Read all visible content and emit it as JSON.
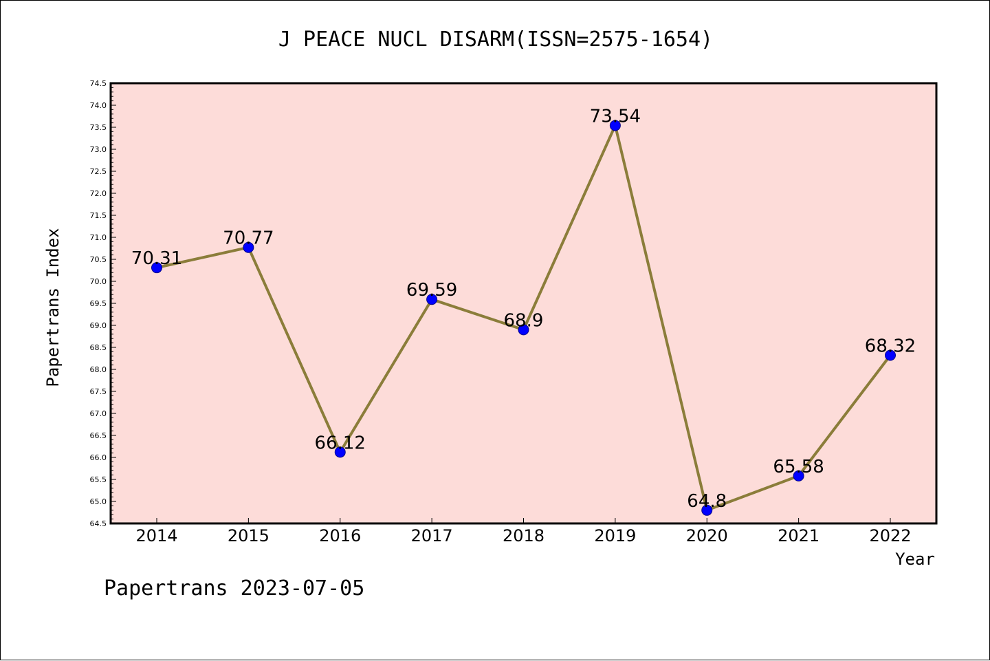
{
  "chart_data": {
    "type": "line",
    "title": "J PEACE NUCL DISARM(ISSN=2575-1654)",
    "xlabel": "Year",
    "ylabel": "Papertrans Index",
    "categories": [
      "2014",
      "2015",
      "2016",
      "2017",
      "2018",
      "2019",
      "2020",
      "2021",
      "2022"
    ],
    "values": [
      70.31,
      70.77,
      66.12,
      69.59,
      68.9,
      73.54,
      64.8,
      65.58,
      68.32
    ],
    "data_labels": [
      "70.31",
      "70.77",
      "66.12",
      "69.59",
      "68.9",
      "73.54",
      "64.8",
      "65.58",
      "68.32"
    ],
    "ylim": [
      64.5,
      74.5
    ],
    "yticks": [
      "64.5",
      "65.0",
      "65.5",
      "66.0",
      "66.5",
      "67.0",
      "67.5",
      "68.0",
      "68.5",
      "69.0",
      "69.5",
      "70.0",
      "70.5",
      "71.0",
      "71.5",
      "72.0",
      "72.5",
      "73.0",
      "73.5",
      "74.0",
      "74.5"
    ],
    "grid": false,
    "legend": "none",
    "colors": {
      "plot_background": "#fddcd9",
      "line": "#8b7d3a",
      "marker": "#0000ff",
      "marker_edge": "#00008b"
    }
  },
  "footer": "Papertrans 2023-07-05"
}
